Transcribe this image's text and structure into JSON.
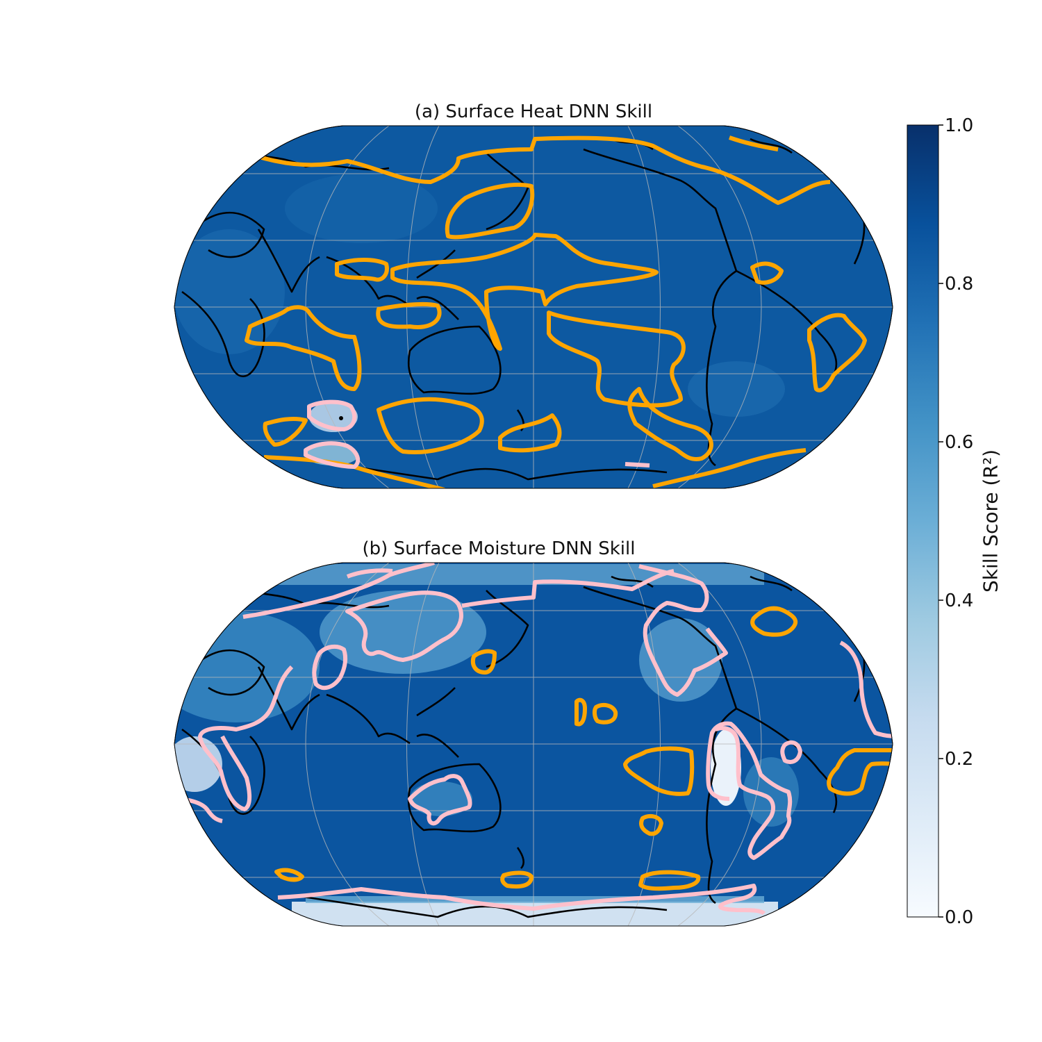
{
  "figure": {
    "panel_a_title": "(a) Surface Heat DNN Skill",
    "panel_b_title": "(b) Surface Moisture DNN Skill",
    "colorbar": {
      "label": "Skill Score (R²)",
      "ticks": [
        "0.0",
        "0.2",
        "0.4",
        "0.6",
        "0.8",
        "1.0"
      ],
      "range": [
        0.0,
        1.0
      ],
      "colormap": "Blues",
      "color_low": "#f7fbff",
      "color_high": "#08306b"
    },
    "contour_colors": {
      "orange": "#ffa500",
      "pink": "#ffc0cb",
      "coastline": "#000000"
    },
    "projection": "Robinson (centered on Pacific)"
  },
  "chart_data": [
    {
      "type": "heatmap",
      "title": "(a) Surface Heat DNN Skill",
      "value_range": [
        0.0,
        1.0
      ],
      "typical_skill": 0.85,
      "contours": [
        "orange: high skill regions",
        "pink: lower skill regions"
      ]
    },
    {
      "type": "heatmap",
      "title": "(b) Surface Moisture DNN Skill",
      "value_range": [
        0.0,
        1.0
      ],
      "typical_skill": 0.85,
      "low_skill_areas": [
        "Antarctica",
        "Atacama / Andes",
        "Sahara",
        "Central Asia"
      ],
      "contours": [
        "orange: high skill regions",
        "pink: lower skill regions"
      ]
    }
  ]
}
